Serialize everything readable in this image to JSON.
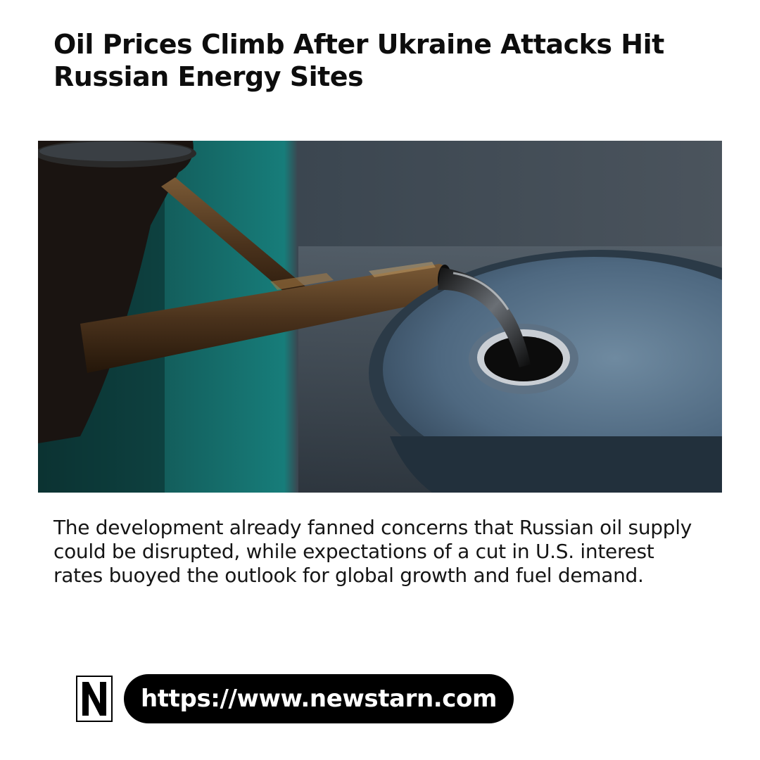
{
  "article": {
    "headline": "Oil Prices Climb After Ukraine Attacks Hit Russian Energy Sites",
    "summary": "The development already fanned concerns that Russian oil supply could be disrupted, while expectations of a cut in U.S. interest rates buoyed the outlook for global growth and fuel demand."
  },
  "photo": {
    "subject": "oil-pouring-into-barrel"
  },
  "footer": {
    "logo_letter": "N",
    "url": "https://www.newstarn.com"
  }
}
